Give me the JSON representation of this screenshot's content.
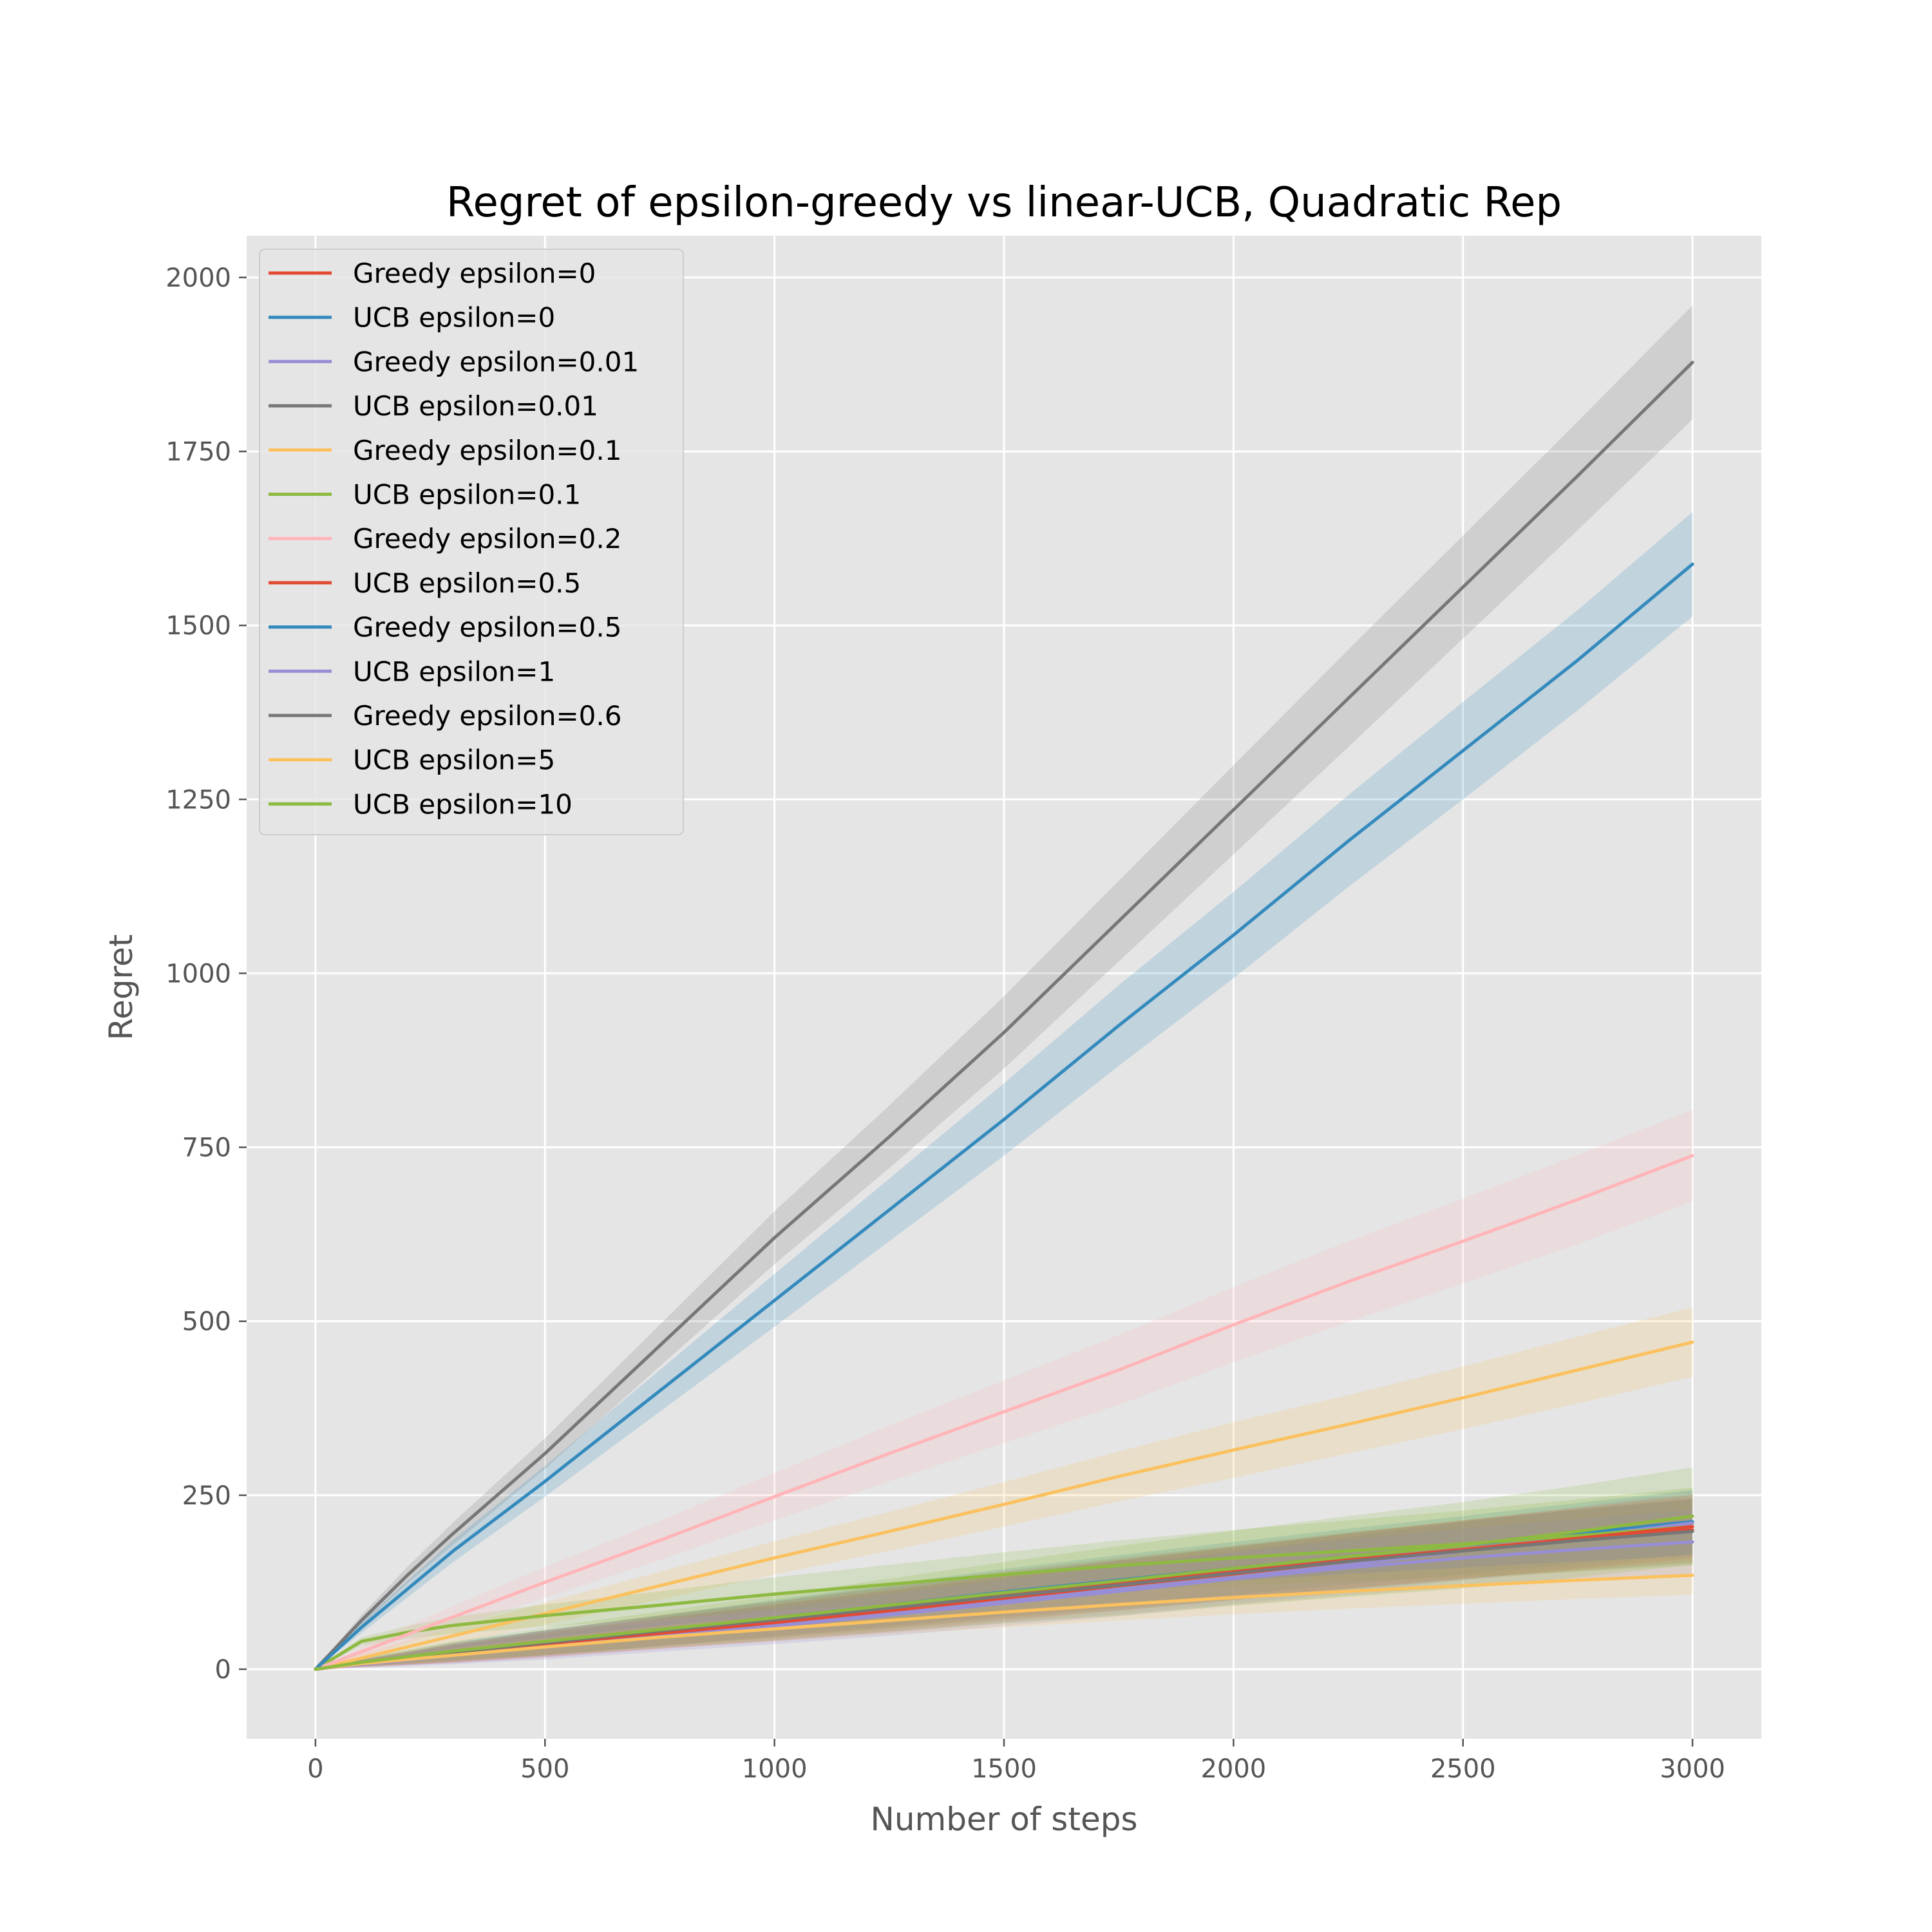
{
  "chart_data": {
    "type": "line",
    "title": "Regret of epsilon-greedy vs linear-UCB, Quadratic Rep",
    "xlabel": "Number of steps",
    "ylabel": "Regret",
    "xlim": [
      -150,
      3150
    ],
    "ylim": [
      -100,
      2060
    ],
    "xticks": [
      0,
      500,
      1000,
      1500,
      2000,
      2500,
      3000
    ],
    "yticks": [
      0,
      250,
      500,
      750,
      1000,
      1250,
      1500,
      1750,
      2000
    ],
    "grid": true,
    "legend_position": "upper-left",
    "x": [
      0,
      100,
      200,
      300,
      500,
      750,
      1000,
      1250,
      1500,
      1750,
      2000,
      2250,
      2500,
      2750,
      3000
    ],
    "series": [
      {
        "name": "Greedy epsilon=0",
        "color": "#E24A33",
        "values": [
          0,
          9,
          16,
          24,
          38,
          56,
          72,
          90,
          108,
          124,
          140,
          157,
          172,
          186,
          200
        ],
        "band": [
          0,
          5,
          9,
          13,
          18,
          22,
          26,
          30,
          33,
          36,
          38,
          40,
          42,
          44,
          46
        ]
      },
      {
        "name": "UCB epsilon=0",
        "color": "#348ABD",
        "values": [
          0,
          10,
          18,
          26,
          38,
          55,
          74,
          92,
          111,
          128,
          145,
          162,
          178,
          195,
          212
        ],
        "band": [
          0,
          5,
          9,
          13,
          18,
          22,
          26,
          30,
          33,
          36,
          38,
          40,
          42,
          44,
          46
        ]
      },
      {
        "name": "Greedy epsilon=0.01",
        "color": "#988ED5",
        "values": [
          0,
          8,
          15,
          22,
          36,
          52,
          66,
          82,
          99,
          115,
          132,
          150,
          170,
          190,
          210
        ],
        "band": [
          0,
          5,
          9,
          13,
          18,
          22,
          26,
          30,
          33,
          36,
          38,
          40,
          42,
          44,
          46
        ]
      },
      {
        "name": "UCB epsilon=0.01",
        "color": "#777777",
        "values": [
          0,
          70,
          135,
          195,
          310,
          465,
          620,
          765,
          915,
          1075,
          1235,
          1395,
          1555,
          1715,
          1878
        ],
        "band": [
          0,
          8,
          12,
          16,
          22,
          30,
          38,
          45,
          52,
          58,
          64,
          70,
          74,
          78,
          82
        ]
      },
      {
        "name": "Greedy epsilon=0.1",
        "color": "#FBC15E",
        "values": [
          0,
          16,
          32,
          48,
          80,
          120,
          160,
          198,
          237,
          277,
          315,
          352,
          390,
          430,
          470
        ],
        "band": [
          0,
          6,
          9,
          12,
          16,
          20,
          24,
          28,
          32,
          36,
          40,
          42,
          45,
          48,
          50
        ]
      },
      {
        "name": "UCB epsilon=0.1",
        "color": "#8EBA42",
        "values": [
          0,
          40,
          53,
          63,
          77,
          92,
          108,
          122,
          136,
          149,
          160,
          170,
          180,
          192,
          205
        ],
        "band": [
          0,
          6,
          9,
          12,
          16,
          20,
          24,
          28,
          32,
          36,
          40,
          44,
          48,
          52,
          56
        ]
      },
      {
        "name": "Greedy epsilon=0.2",
        "color": "#FFB5B8",
        "values": [
          0,
          25,
          50,
          75,
          125,
          185,
          248,
          310,
          370,
          430,
          495,
          557,
          615,
          675,
          738
        ],
        "band": [
          0,
          8,
          12,
          16,
          22,
          28,
          34,
          40,
          45,
          50,
          54,
          58,
          61,
          64,
          66
        ]
      },
      {
        "name": "UCB epsilon=0.5",
        "color": "#E24A33",
        "values": [
          0,
          8,
          15,
          22,
          35,
          51,
          67,
          84,
          102,
          120,
          137,
          155,
          172,
          188,
          205
        ],
        "band": [
          0,
          5,
          9,
          13,
          18,
          22,
          26,
          30,
          33,
          36,
          38,
          40,
          42,
          44,
          46
        ]
      },
      {
        "name": "Greedy epsilon=0.5",
        "color": "#348ABD",
        "values": [
          0,
          60,
          115,
          170,
          270,
          400,
          530,
          660,
          790,
          925,
          1055,
          1190,
          1320,
          1450,
          1588
        ],
        "band": [
          0,
          8,
          12,
          16,
          22,
          30,
          38,
          45,
          52,
          58,
          62,
          66,
          70,
          72,
          75
        ]
      },
      {
        "name": "UCB epsilon=1",
        "color": "#988ED5",
        "values": [
          0,
          7,
          13,
          20,
          32,
          47,
          62,
          78,
          95,
          112,
          130,
          146,
          160,
          172,
          183
        ],
        "band": [
          0,
          5,
          9,
          13,
          18,
          22,
          26,
          30,
          33,
          36,
          38,
          40,
          42,
          44,
          46
        ]
      },
      {
        "name": "Greedy epsilon=0.6",
        "color": "#777777",
        "values": [
          0,
          9,
          16,
          24,
          38,
          55,
          71,
          88,
          105,
          121,
          138,
          155,
          170,
          185,
          198
        ],
        "band": [
          0,
          5,
          9,
          13,
          18,
          22,
          26,
          30,
          33,
          36,
          38,
          40,
          42,
          44,
          46
        ]
      },
      {
        "name": "UCB epsilon=5",
        "color": "#FBC15E",
        "values": [
          0,
          8,
          14,
          20,
          32,
          46,
          58,
          70,
          82,
          93,
          103,
          112,
          120,
          128,
          135
        ],
        "band": [
          0,
          4,
          7,
          10,
          13,
          16,
          18,
          20,
          22,
          23,
          24,
          25,
          26,
          27,
          28
        ]
      },
      {
        "name": "UCB epsilon=10",
        "color": "#8EBA42",
        "values": [
          0,
          10,
          18,
          26,
          40,
          57,
          74,
          92,
          110,
          127,
          145,
          162,
          178,
          198,
          220
        ],
        "band": [
          0,
          6,
          10,
          14,
          20,
          26,
          32,
          38,
          44,
          50,
          54,
          58,
          62,
          66,
          70
        ]
      }
    ]
  }
}
